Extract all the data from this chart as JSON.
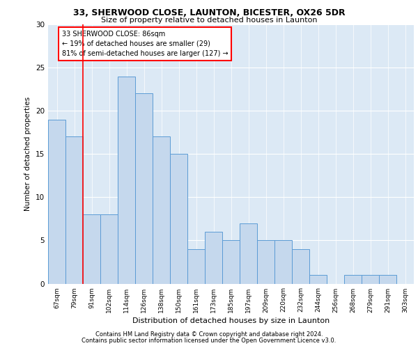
{
  "title1": "33, SHERWOOD CLOSE, LAUNTON, BICESTER, OX26 5DR",
  "title2": "Size of property relative to detached houses in Launton",
  "xlabel": "Distribution of detached houses by size in Launton",
  "ylabel": "Number of detached properties",
  "categories": [
    "67sqm",
    "79sqm",
    "91sqm",
    "102sqm",
    "114sqm",
    "126sqm",
    "138sqm",
    "150sqm",
    "161sqm",
    "173sqm",
    "185sqm",
    "197sqm",
    "209sqm",
    "220sqm",
    "232sqm",
    "244sqm",
    "256sqm",
    "268sqm",
    "279sqm",
    "291sqm",
    "303sqm"
  ],
  "values": [
    19,
    17,
    8,
    8,
    24,
    22,
    17,
    15,
    4,
    6,
    5,
    7,
    5,
    5,
    4,
    1,
    0,
    1,
    1,
    1,
    0
  ],
  "bar_color": "#c5d8ed",
  "bar_edge_color": "#5b9bd5",
  "reference_line_x": 1.5,
  "annotation_text": "33 SHERWOOD CLOSE: 86sqm\n← 19% of detached houses are smaller (29)\n81% of semi-detached houses are larger (127) →",
  "annotation_box_color": "white",
  "annotation_box_edge_color": "red",
  "ref_line_color": "red",
  "ylim": [
    0,
    30
  ],
  "yticks": [
    0,
    5,
    10,
    15,
    20,
    25,
    30
  ],
  "footer1": "Contains HM Land Registry data © Crown copyright and database right 2024.",
  "footer2": "Contains public sector information licensed under the Open Government Licence v3.0.",
  "plot_bg_color": "#dce9f5"
}
